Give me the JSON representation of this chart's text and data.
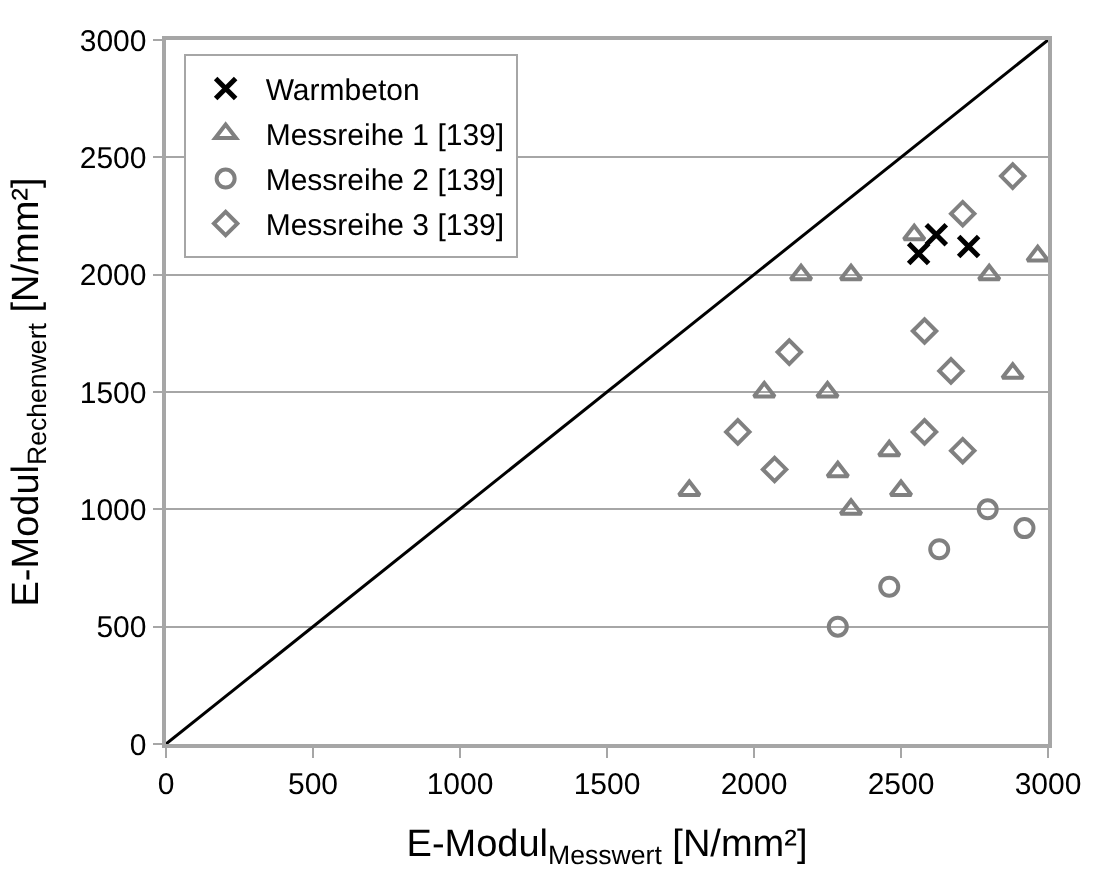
{
  "chart_data": {
    "type": "scatter",
    "xlabel": "E-Modul$_{Messwert}$ [N/mm²]",
    "ylabel": "E-Modul$_{Rechenwert}$ [N/mm²]",
    "xlim": [
      0,
      3000
    ],
    "ylim": [
      0,
      3000
    ],
    "xticks": [
      0,
      500,
      1000,
      1500,
      2000,
      2500,
      3000
    ],
    "yticks": [
      0,
      500,
      1000,
      1500,
      2000,
      2500,
      3000
    ],
    "grid": "y",
    "legend": "top left",
    "series": [
      {
        "name": "Warmbeton",
        "color": "#000000",
        "marker": "cross",
        "x": [
          2560,
          2620,
          2730
        ],
        "values": [
          2090,
          2170,
          2120
        ]
      },
      {
        "name": "Messreihe 1 [139]",
        "color": "#808080",
        "marker": "triangle",
        "x": [
          2545,
          2965,
          2160,
          2330,
          2800,
          2880,
          2035,
          2250,
          2460,
          2285,
          2500,
          1780,
          2330
        ],
        "values": [
          2170,
          2080,
          2000,
          2000,
          2000,
          1580,
          1500,
          1500,
          1250,
          1160,
          1080,
          1080,
          1000
        ]
      },
      {
        "name": "Messreihe 2 [139]",
        "color": "#808080",
        "marker": "circle",
        "x": [
          2285,
          2460,
          2630,
          2795,
          2920
        ],
        "values": [
          500,
          670,
          830,
          1000,
          920
        ]
      },
      {
        "name": "Messreihe 3 [139]",
        "color": "#808080",
        "marker": "diamond",
        "x": [
          2880,
          2710,
          2580,
          2120,
          2670,
          1945,
          2580,
          2710,
          2070
        ],
        "values": [
          2420,
          2260,
          1760,
          1670,
          1590,
          1330,
          1330,
          1250,
          1170
        ]
      },
      {
        "type": "line",
        "color": "#000000",
        "marker": "none",
        "x": [
          0,
          3000
        ],
        "values": [
          0,
          3000
        ]
      }
    ]
  }
}
